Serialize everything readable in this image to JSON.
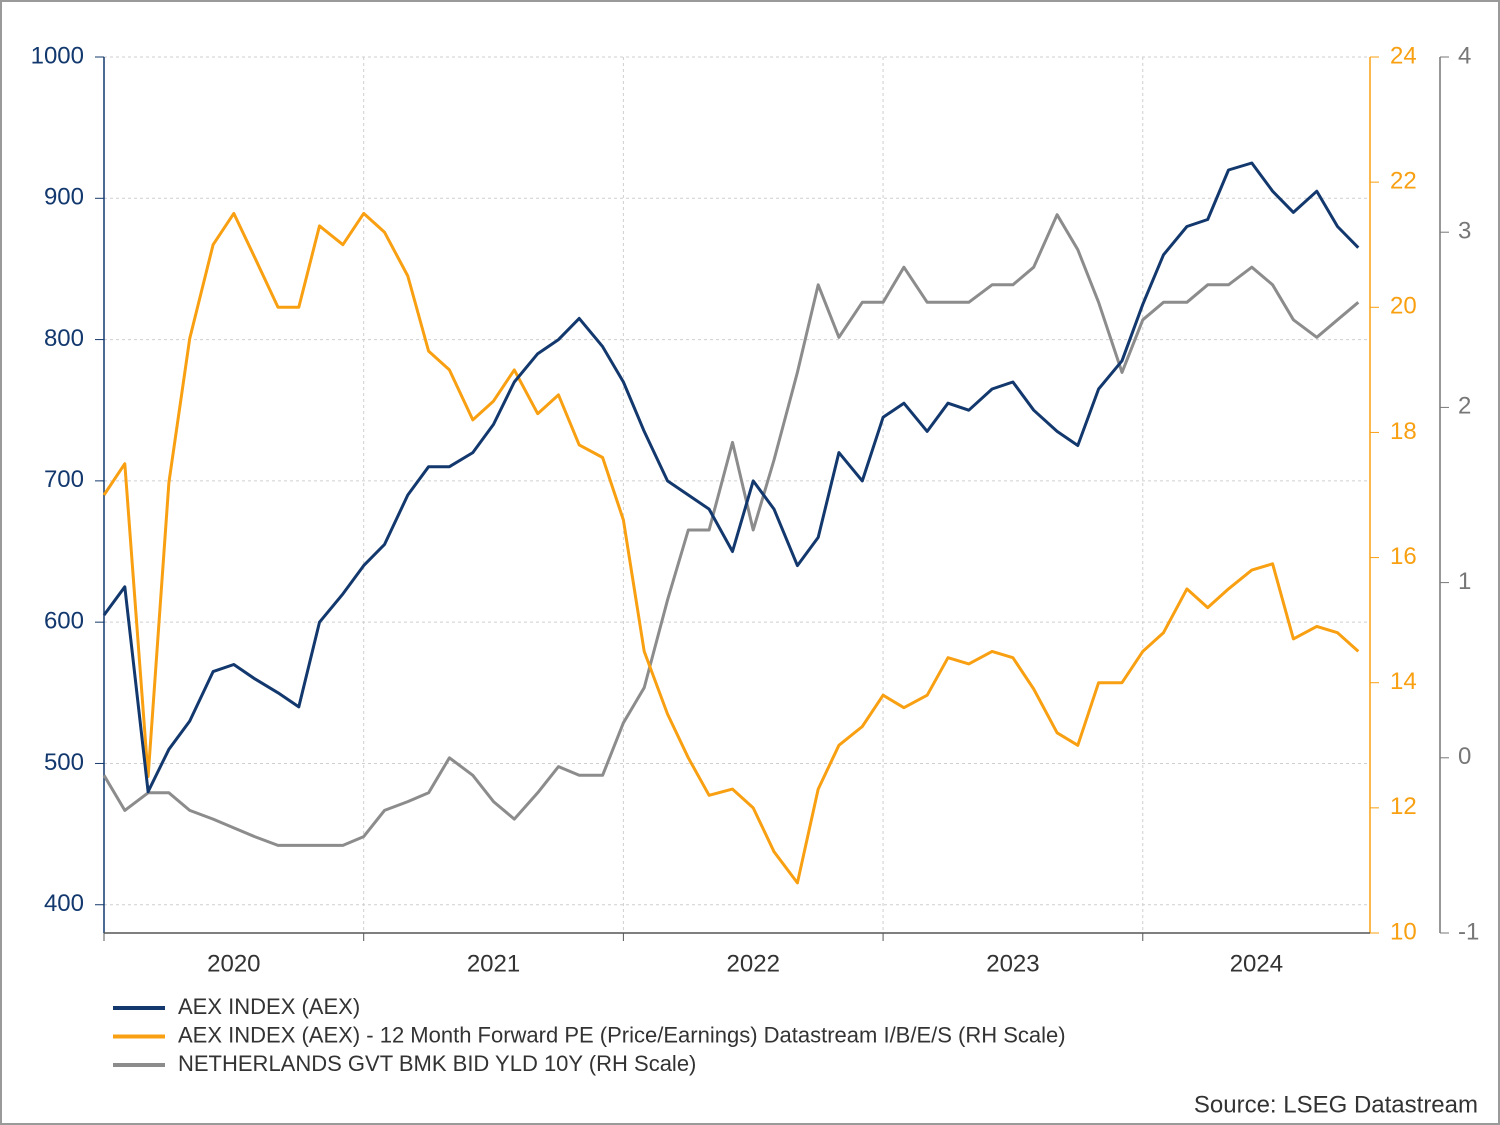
{
  "chart_data": {
    "type": "line",
    "x": [
      2020,
      2020.08,
      2020.17,
      2020.25,
      2020.33,
      2020.42,
      2020.5,
      2020.58,
      2020.67,
      2020.75,
      2020.83,
      2020.92,
      2021,
      2021.08,
      2021.17,
      2021.25,
      2021.33,
      2021.42,
      2021.5,
      2021.58,
      2021.67,
      2021.75,
      2021.83,
      2021.92,
      2022,
      2022.08,
      2022.17,
      2022.25,
      2022.33,
      2022.42,
      2022.5,
      2022.58,
      2022.67,
      2022.75,
      2022.83,
      2022.92,
      2023,
      2023.08,
      2023.17,
      2023.25,
      2023.33,
      2023.42,
      2023.5,
      2023.58,
      2023.67,
      2023.75,
      2023.83,
      2023.92,
      2024,
      2024.08,
      2024.17,
      2024.25,
      2024.33,
      2024.42,
      2024.5,
      2024.58,
      2024.67,
      2024.75,
      2024.83
    ],
    "xlim": [
      2020,
      2024.875
    ],
    "xticks": [
      2020,
      2021,
      2022,
      2023,
      2024
    ],
    "ylim": [
      380,
      1000
    ],
    "yticks": [
      400,
      500,
      600,
      700,
      800,
      900,
      1000
    ],
    "y2lim": [
      10,
      24
    ],
    "y2ticks": [
      10,
      12,
      14,
      16,
      18,
      20,
      22,
      24
    ],
    "y3lim": [
      -1,
      4
    ],
    "y3ticks": [
      -1,
      0,
      1,
      2,
      3,
      4
    ],
    "grid": true,
    "series": [
      {
        "name": "AEX INDEX (AEX)",
        "color": "#12386e",
        "values": [
          605,
          625,
          480,
          510,
          530,
          565,
          570,
          560,
          550,
          540,
          600,
          620,
          640,
          655,
          690,
          710,
          710,
          720,
          740,
          770,
          790,
          800,
          815,
          795,
          770,
          735,
          700,
          690,
          680,
          650,
          700,
          680,
          640,
          660,
          720,
          700,
          745,
          755,
          735,
          755,
          750,
          765,
          770,
          750,
          735,
          725,
          765,
          785,
          825,
          860,
          880,
          885,
          920,
          925,
          905,
          890,
          905,
          880,
          865
        ]
      },
      {
        "name": "AEX INDEX (AEX) - 12 Month Forward PE (Price/Earnings) Datastream I/B/E/S (RH Scale)",
        "color": "#f8a012",
        "axis": "y2",
        "values": [
          17.0,
          17.5,
          12.5,
          17.2,
          19.5,
          21.0,
          21.5,
          20.8,
          20.0,
          20.0,
          21.3,
          21.0,
          21.5,
          21.2,
          20.5,
          19.3,
          19.0,
          18.2,
          18.5,
          19.0,
          18.3,
          18.6,
          17.8,
          17.6,
          16.6,
          14.5,
          13.5,
          12.8,
          12.2,
          12.3,
          12.0,
          11.3,
          10.8,
          12.3,
          13.0,
          13.3,
          13.8,
          13.6,
          13.8,
          14.4,
          14.3,
          14.5,
          14.4,
          13.9,
          13.2,
          13.0,
          14.0,
          14.0,
          14.5,
          14.8,
          15.5,
          15.2,
          15.5,
          15.8,
          15.9,
          14.7,
          14.9,
          14.8,
          14.5
        ]
      },
      {
        "name": "NETHERLANDS GVT BMK BID YLD 10Y (RH Scale)",
        "color": "#8c8c8c",
        "axis": "y3",
        "values": [
          -0.1,
          -0.3,
          -0.2,
          -0.2,
          -0.3,
          -0.35,
          -0.4,
          -0.45,
          -0.5,
          -0.5,
          -0.5,
          -0.5,
          -0.45,
          -0.3,
          -0.25,
          -0.2,
          0.0,
          -0.1,
          -0.25,
          -0.35,
          -0.2,
          -0.05,
          -0.1,
          -0.1,
          0.2,
          0.4,
          0.9,
          1.3,
          1.3,
          1.8,
          1.3,
          1.7,
          2.2,
          2.7,
          2.4,
          2.6,
          2.6,
          2.8,
          2.6,
          2.6,
          2.6,
          2.7,
          2.7,
          2.8,
          3.1,
          2.9,
          2.6,
          2.2,
          2.5,
          2.6,
          2.6,
          2.7,
          2.7,
          2.8,
          2.7,
          2.5,
          2.4,
          2.5,
          2.6
        ]
      }
    ],
    "source": "Source: LSEG Datastream"
  }
}
